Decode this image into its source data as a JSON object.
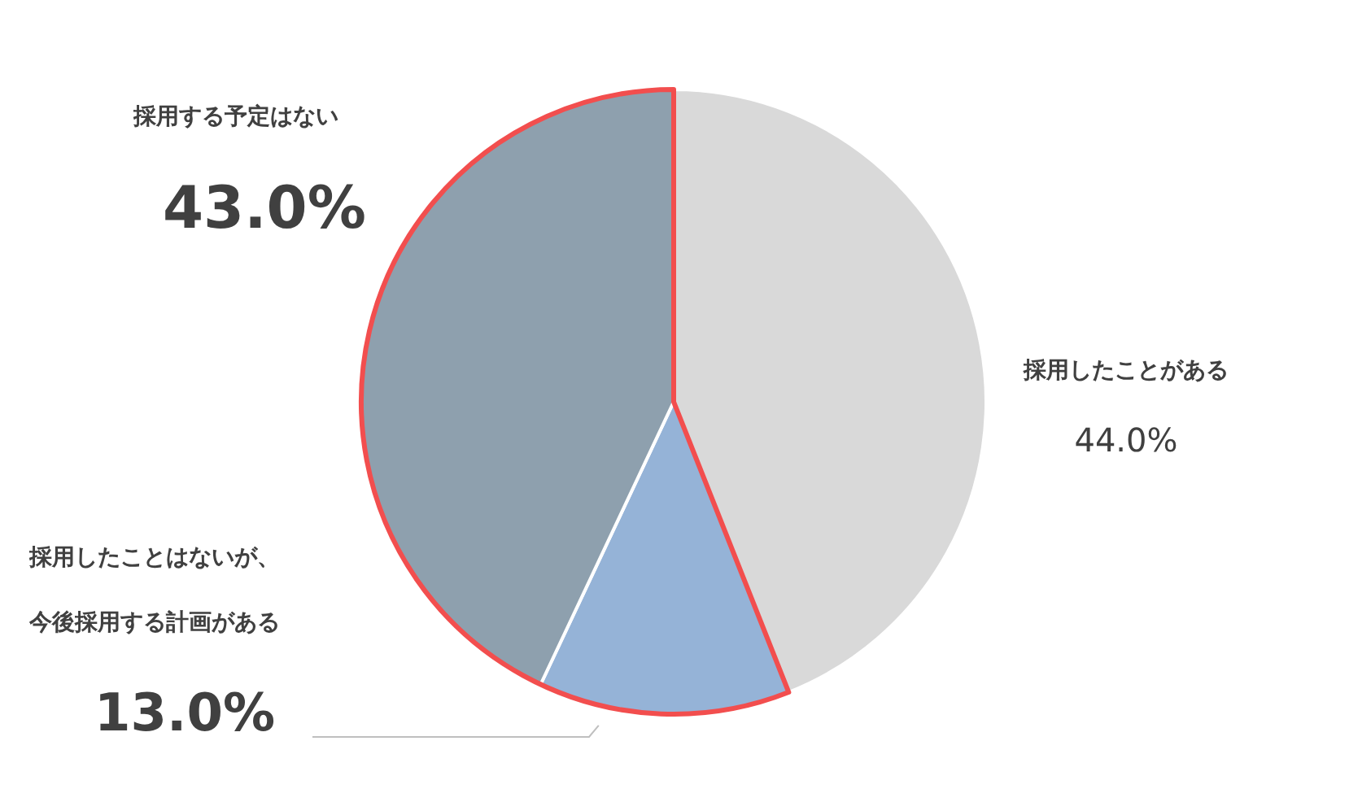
{
  "chart_data": {
    "type": "pie",
    "categories": [
      "採用したことがある",
      "採用したことはないが、今後採用する計画がある",
      "採用する予定はない"
    ],
    "values": [
      44.0,
      13.0,
      43.0
    ],
    "value_labels": [
      "44.0%",
      "13.0%",
      "43.0%"
    ],
    "colors": [
      "#d9d9d9",
      "#95b3d7",
      "#8ea0ae"
    ]
  }
}
